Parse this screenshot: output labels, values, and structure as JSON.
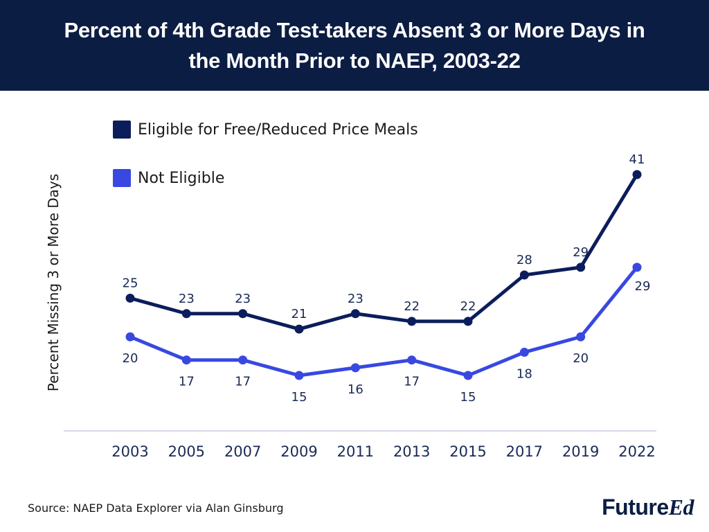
{
  "chart_data": {
    "type": "line",
    "title": "Percent of 4th Grade Test-takers Absent 3 or More Days in the Month Prior to NAEP, 2003-22",
    "xlabel": "",
    "ylabel": "Percent Missing 3 or More Days",
    "categories": [
      "2003",
      "2005",
      "2007",
      "2009",
      "2011",
      "2013",
      "2015",
      "2017",
      "2019",
      "2022"
    ],
    "ylim": [
      10,
      45
    ],
    "grid": false,
    "legend_position": "top-left",
    "series": [
      {
        "name": "Eligible for Free/Reduced Price Meals",
        "color": "#0c1d5c",
        "values": [
          25,
          23,
          23,
          21,
          23,
          22,
          22,
          28,
          29,
          41
        ],
        "label_position": "above"
      },
      {
        "name": "Not Eligible",
        "color": "#3848e0",
        "values": [
          20,
          17,
          17,
          15,
          16,
          17,
          15,
          18,
          20,
          29
        ],
        "label_position": "below"
      }
    ]
  },
  "footer": {
    "source": "Source: NAEP Data Explorer via Alan Ginsburg",
    "logo_part1": "Future",
    "logo_part2": "Ed"
  }
}
